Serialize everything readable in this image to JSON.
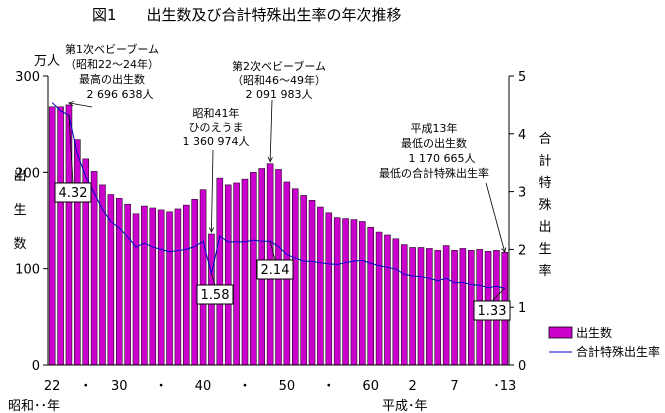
{
  "chart_data": {
    "type": "bar",
    "title": "図1　　出生数及び合計特殊出生率の年次推移",
    "unit_left": "万人",
    "left_axis": {
      "label": "出生数",
      "ylim": [
        0,
        300
      ],
      "ticks": [
        "0",
        "100",
        "200",
        "300"
      ]
    },
    "right_axis": {
      "label": "合計特殊出生率",
      "ylim": [
        0,
        5
      ],
      "ticks": [
        "0",
        "1",
        "2",
        "3",
        "4",
        "5"
      ]
    },
    "x_tick_labels": [
      "22",
      "・",
      "30",
      "・",
      "40",
      "・",
      "50",
      "・",
      "60",
      "2",
      "7",
      "･13"
    ],
    "x_era_left": "昭和･･年",
    "x_era_right": "平成･年",
    "categories": [
      "S22",
      "S23",
      "S24",
      "S25",
      "S26",
      "S27",
      "S28",
      "S29",
      "S30",
      "S31",
      "S32",
      "S33",
      "S34",
      "S35",
      "S36",
      "S37",
      "S38",
      "S39",
      "S40",
      "S41",
      "S42",
      "S43",
      "S44",
      "S45",
      "S46",
      "S47",
      "S48",
      "S49",
      "S50",
      "S51",
      "S52",
      "S53",
      "S54",
      "S55",
      "S56",
      "S57",
      "S58",
      "S59",
      "S60",
      "S61",
      "S62",
      "S63",
      "H1",
      "H2",
      "H3",
      "H4",
      "H5",
      "H6",
      "H7",
      "H8",
      "H9",
      "H10",
      "H11",
      "H12",
      "H13"
    ],
    "series": [
      {
        "name": "出生数",
        "type": "bar",
        "axis": "left",
        "color": "#cc00cc",
        "values": [
          268,
          268,
          270,
          234,
          214,
          201,
          187,
          177,
          173,
          167,
          157,
          165,
          163,
          161,
          159,
          162,
          166,
          172,
          182,
          136,
          194,
          187,
          189,
          193,
          200,
          204,
          209,
          203,
          190,
          183,
          176,
          171,
          164,
          158,
          153,
          152,
          151,
          149,
          143,
          138,
          135,
          131,
          125,
          122,
          122,
          121,
          119,
          124,
          119,
          121,
          119,
          120,
          118,
          119,
          117
        ]
      },
      {
        "name": "合計特殊出生率",
        "type": "line",
        "axis": "right",
        "color": "#0000cc",
        "values": [
          4.54,
          4.4,
          4.32,
          3.65,
          3.26,
          2.98,
          2.69,
          2.48,
          2.37,
          2.22,
          2.04,
          2.11,
          2.04,
          2.0,
          1.96,
          1.98,
          2.0,
          2.05,
          2.14,
          1.58,
          2.23,
          2.13,
          2.13,
          2.13,
          2.16,
          2.14,
          2.14,
          2.05,
          1.91,
          1.85,
          1.8,
          1.79,
          1.77,
          1.75,
          1.74,
          1.77,
          1.8,
          1.81,
          1.76,
          1.72,
          1.69,
          1.66,
          1.57,
          1.54,
          1.53,
          1.5,
          1.46,
          1.5,
          1.42,
          1.43,
          1.39,
          1.38,
          1.34,
          1.36,
          1.33
        ]
      }
    ],
    "value_labels": [
      {
        "category": "S24",
        "text": "4.32"
      },
      {
        "category": "S41",
        "text": "1.58"
      },
      {
        "category": "S48",
        "text": "2.14"
      },
      {
        "category": "H13",
        "text": "1.33"
      }
    ],
    "annotations": [
      {
        "category": "S24",
        "lines": [
          "第1次ベビーブーム",
          "（昭和22～24年）",
          "最高の出生数",
          "2 696 638人"
        ]
      },
      {
        "category": "S41",
        "lines": [
          "昭和41年",
          "ひのえうま",
          "1 360 974人"
        ]
      },
      {
        "category": "S48",
        "lines": [
          "第2次ベビーブーム",
          "（昭和46～49年）",
          "2 091 983人"
        ]
      },
      {
        "category": "H13",
        "lines": [
          "平成13年",
          "最低の出生数",
          "1 170 665人",
          "最低の合計特殊出生率"
        ]
      }
    ],
    "legend": {
      "placement": "bottom-right"
    },
    "grid": false
  }
}
